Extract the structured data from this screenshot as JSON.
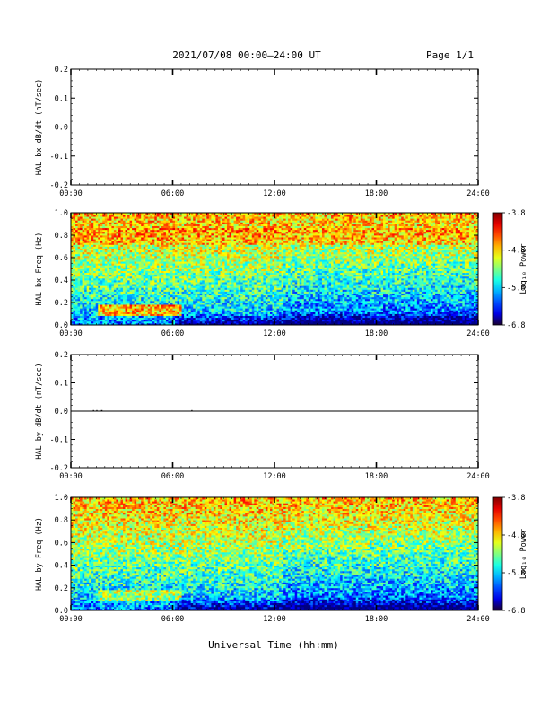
{
  "header": {
    "title": "2021/07/08  00:00‒24:00 UT",
    "page": "Page 1/1"
  },
  "xlabel": "Universal Time (hh:mm)",
  "chart_data": [
    {
      "type": "line",
      "ylabel": "HAL bx dB/dt (nT/sec)",
      "xlim": [
        "00:00",
        "24:00"
      ],
      "ylim": [
        -0.2,
        0.2
      ],
      "x_ticks": [
        "00:00",
        "06:00",
        "12:00",
        "18:00",
        "24:00"
      ],
      "y_ticks": [
        "-0.2",
        "-0.1",
        "0.0",
        "0.1",
        "0.2"
      ],
      "series": [
        {
          "x": [
            "00:00",
            "24:00"
          ],
          "y": [
            0.0,
            0.0
          ]
        }
      ]
    },
    {
      "type": "heatmap",
      "ylabel": "HAL bx Freq (Hz)",
      "xlim": [
        "00:00",
        "24:00"
      ],
      "ylim": [
        0.0,
        1.0
      ],
      "x_ticks": [
        "00:00",
        "06:00",
        "12:00",
        "18:00",
        "24:00"
      ],
      "y_ticks": [
        "0.0",
        "0.2",
        "0.4",
        "0.6",
        "0.8",
        "1.0"
      ],
      "colorbar": {
        "label": "Log₁₀ Power",
        "range": [
          -6.8,
          -3.8
        ],
        "ticks": [
          "-3.8",
          "-4.8",
          "-5.8",
          "-6.8"
        ]
      }
    },
    {
      "type": "line",
      "ylabel": "HAL by dB/dt (nT/sec)",
      "xlim": [
        "00:00",
        "24:00"
      ],
      "ylim": [
        -0.2,
        0.2
      ],
      "x_ticks": [
        "00:00",
        "06:00",
        "12:00",
        "18:00",
        "24:00"
      ],
      "y_ticks": [
        "-0.2",
        "-0.1",
        "0.0",
        "0.1",
        "0.2"
      ],
      "series": [
        {
          "x": [
            "00:00",
            "24:00"
          ],
          "y": [
            0.0,
            0.0
          ]
        }
      ]
    },
    {
      "type": "heatmap",
      "ylabel": "HAL by Freq (Hz)",
      "xlim": [
        "00:00",
        "24:00"
      ],
      "ylim": [
        0.0,
        1.0
      ],
      "x_ticks": [
        "00:00",
        "06:00",
        "12:00",
        "18:00",
        "24:00"
      ],
      "y_ticks": [
        "0.0",
        "0.2",
        "0.4",
        "0.6",
        "0.8",
        "1.0"
      ],
      "colorbar": {
        "label": "Log₁₀ Power",
        "range": [
          -6.8,
          -3.8
        ],
        "ticks": [
          "-3.8",
          "-4.8",
          "-5.8",
          "-6.8"
        ]
      }
    }
  ]
}
